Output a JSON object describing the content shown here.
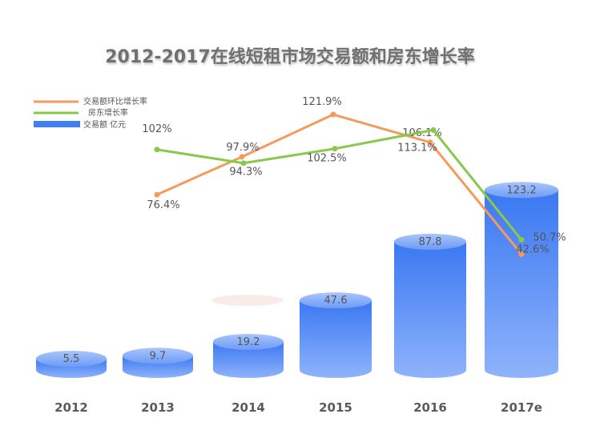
{
  "chart_data": {
    "type": "bar",
    "title": "2012-2017在线短租市场交易额和房东增长率",
    "categories": [
      "2012",
      "2013",
      "2014",
      "2015",
      "2016",
      "2017e"
    ],
    "series": [
      {
        "name": "交易额 亿元",
        "kind": "cylinder-bar",
        "color": "#3f7ff6",
        "values": [
          5.5,
          9.7,
          19.2,
          47.6,
          87.8,
          123.2
        ]
      },
      {
        "name": "交易额环比增长率",
        "kind": "line",
        "color": "#f59a5c",
        "values": [
          null,
          76.4,
          97.9,
          121.9,
          106.1,
          42.6
        ],
        "labels": [
          "",
          "76.4%",
          "97.9%",
          "121.9%",
          "106.1%",
          "42.6%"
        ]
      },
      {
        "name": "房东增长率",
        "kind": "line",
        "color": "#88c84a",
        "values": [
          null,
          102,
          94.3,
          102.5,
          113.1,
          50.7
        ],
        "labels": [
          "",
          "102%",
          "94.3%",
          "102.5%",
          "113.1%",
          "50.7%"
        ]
      }
    ],
    "legend_position": "top-left",
    "grid": false,
    "ylim": [
      0,
      125
    ]
  }
}
